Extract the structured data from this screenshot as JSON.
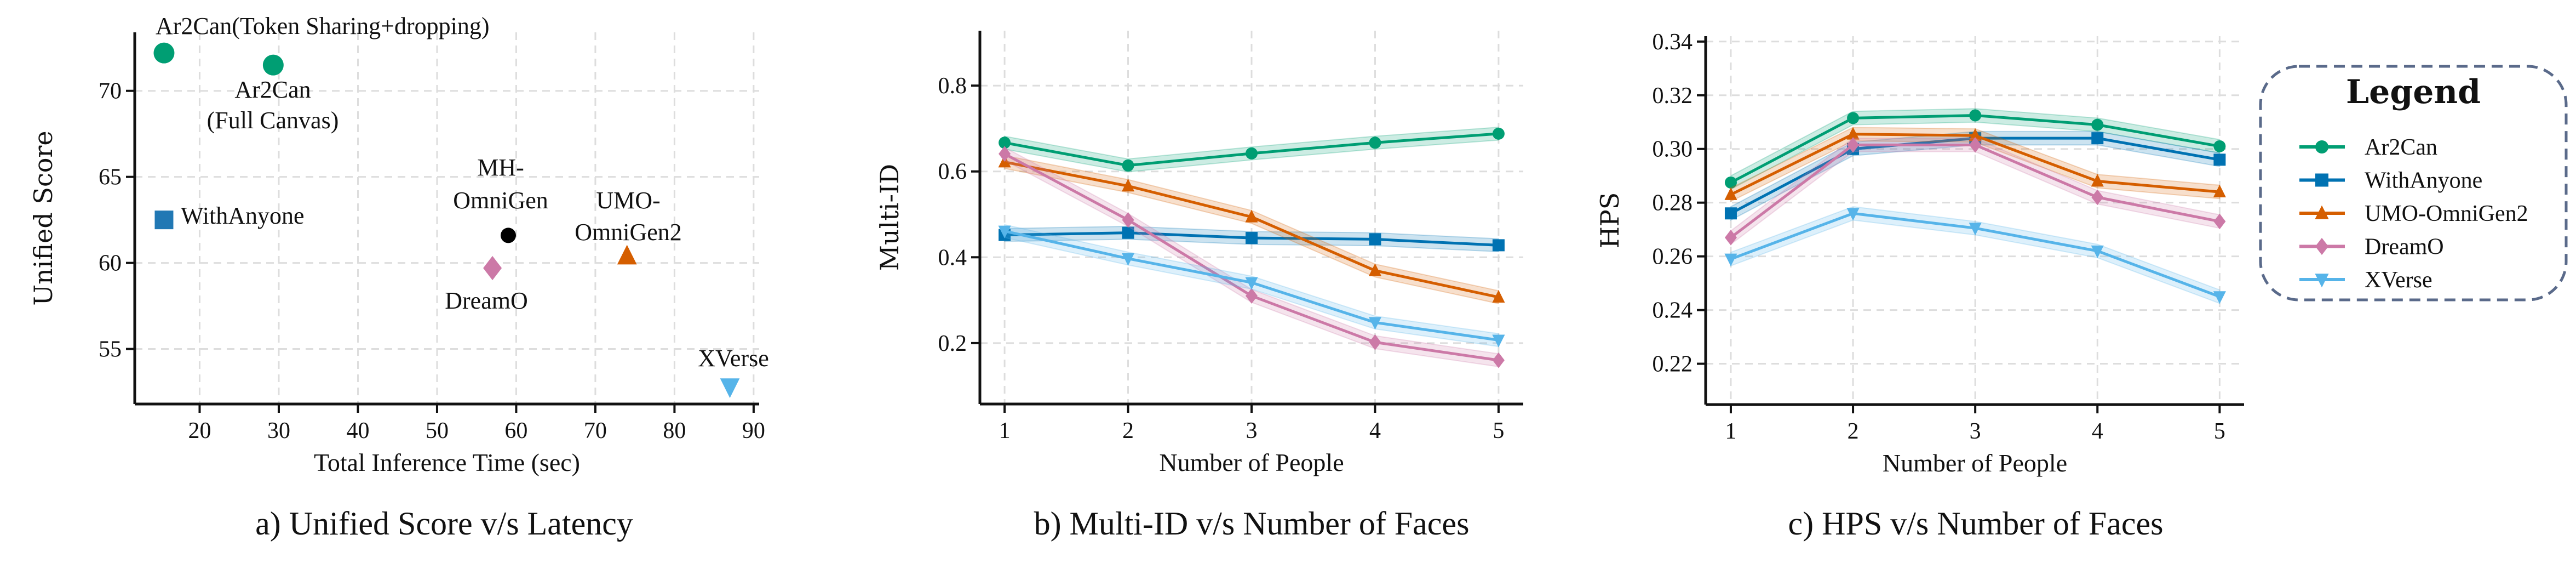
{
  "colors": {
    "Ar2Can": "#009e73",
    "WithAnyone": "#0072b2",
    "UMO-OmniGen2": "#d55e00",
    "DreamO": "#cc79a7",
    "XVerse": "#56b4e9",
    "MH-OmniGen": "#000000"
  },
  "legend": {
    "title": "Legend",
    "items": [
      "Ar2Can",
      "WithAnyone",
      "UMO-OmniGen2",
      "DreamO",
      "XVerse"
    ],
    "placement": "right"
  },
  "chart_data": [
    {
      "type": "scatter",
      "caption": "a) Unified Score v/s Latency",
      "xlabel": "Total Inference Time (sec)",
      "ylabel": "Unified Score",
      "xlim": [
        11.8,
        90.7
      ],
      "ylim": [
        51.8,
        73.4
      ],
      "xticks": [
        "20",
        "30",
        "40",
        "50",
        "60",
        "70",
        "80",
        "90"
      ],
      "yticks": [
        "55",
        "60",
        "65",
        "70"
      ],
      "grid": true,
      "points": [
        {
          "label": [
            "Ar2Can(Token Sharing+dropping)"
          ],
          "x": 15.5,
          "y": 72.2,
          "marker": "circle",
          "color": "#009e73"
        },
        {
          "label": [
            "Ar2Can",
            "(Full Canvas)"
          ],
          "x": 29.3,
          "y": 71.5,
          "marker": "circle",
          "color": "#009e73"
        },
        {
          "label": [
            "WithAnyone"
          ],
          "x": 15.5,
          "y": 62.5,
          "marker": "square",
          "color": "#2178b4"
        },
        {
          "label": [
            "MH-",
            "OmniGen"
          ],
          "x": 59,
          "y": 61.6,
          "marker": "circle",
          "color": "#000000"
        },
        {
          "label": [
            "DreamO"
          ],
          "x": 57,
          "y": 59.7,
          "marker": "diamond",
          "color": "#cc79a7"
        },
        {
          "label": [
            "UMO-",
            "OmniGen2"
          ],
          "x": 74,
          "y": 60.4,
          "marker": "triangle-up",
          "color": "#d55e00"
        },
        {
          "label": [
            "XVerse"
          ],
          "x": 87,
          "y": 52.8,
          "marker": "triangle-down",
          "color": "#56b4e9"
        }
      ]
    },
    {
      "type": "line",
      "caption": "b) Multi-ID v/s Number of Faces",
      "xlabel": "Number of People",
      "ylabel": "Multi-ID",
      "x": [
        1,
        2,
        3,
        4,
        5
      ],
      "xlim": [
        0.8,
        5.2
      ],
      "ylim": [
        0.058,
        0.928
      ],
      "xticks": [
        "1",
        "2",
        "3",
        "4",
        "5"
      ],
      "yticks": [
        "0.2",
        "0.4",
        "0.6",
        "0.8"
      ],
      "grid": true,
      "ci": 0.015,
      "series": [
        {
          "name": "Ar2Can",
          "marker": "circle",
          "values": [
            0.667,
            0.614,
            0.642,
            0.667,
            0.688
          ]
        },
        {
          "name": "WithAnyone",
          "marker": "square",
          "values": [
            0.452,
            0.457,
            0.445,
            0.442,
            0.428
          ]
        },
        {
          "name": "UMO-OmniGen2",
          "marker": "triangle-up",
          "values": [
            0.622,
            0.566,
            0.494,
            0.369,
            0.307
          ]
        },
        {
          "name": "DreamO",
          "marker": "diamond",
          "values": [
            0.641,
            0.487,
            0.31,
            0.202,
            0.16
          ]
        },
        {
          "name": "XVerse",
          "marker": "triangle-down",
          "values": [
            0.461,
            0.397,
            0.341,
            0.248,
            0.207
          ]
        }
      ]
    },
    {
      "type": "line",
      "caption": "c) HPS v/s Number of Faces",
      "xlabel": "Number of People",
      "ylabel": "HPS",
      "x": [
        1,
        2,
        3,
        4,
        5
      ],
      "xlim": [
        0.794,
        5.2
      ],
      "ylim": [
        0.2048,
        0.342
      ],
      "xticks": [
        "1",
        "2",
        "3",
        "4",
        "5"
      ],
      "yticks": [
        "0.22",
        "0.24",
        "0.26",
        "0.28",
        "0.30",
        "0.32",
        "0.34"
      ],
      "grid": true,
      "ci": 0.0025,
      "series": [
        {
          "name": "Ar2Can",
          "marker": "circle",
          "values": [
            0.2875,
            0.3115,
            0.3125,
            0.309,
            0.301
          ]
        },
        {
          "name": "WithAnyone",
          "marker": "square",
          "values": [
            0.276,
            0.3,
            0.304,
            0.304,
            0.296
          ]
        },
        {
          "name": "UMO-OmniGen2",
          "marker": "triangle-up",
          "values": [
            0.283,
            0.3055,
            0.305,
            0.288,
            0.284
          ]
        },
        {
          "name": "DreamO",
          "marker": "diamond",
          "values": [
            0.267,
            0.3015,
            0.3015,
            0.282,
            0.273
          ]
        },
        {
          "name": "XVerse",
          "marker": "triangle-down",
          "values": [
            0.259,
            0.276,
            0.2705,
            0.262,
            0.245
          ]
        }
      ]
    }
  ]
}
